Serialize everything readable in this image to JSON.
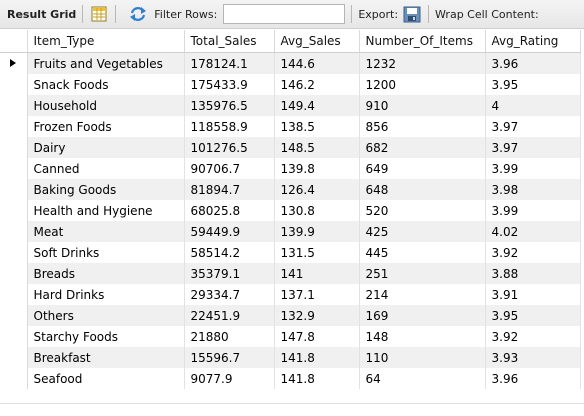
{
  "toolbar": {
    "result_grid_label": "Result Grid",
    "filter_rows_label": "Filter Rows:",
    "filter_rows_value": "",
    "export_label": "Export:",
    "wrap_cell_label": "Wrap Cell Content:"
  },
  "grid": {
    "columns": [
      "Item_Type",
      "Total_Sales",
      "Avg_Sales",
      "Number_Of_Items",
      "Avg_Rating"
    ],
    "rows": [
      [
        "Fruits and Vegetables",
        "178124.1",
        "144.6",
        "1232",
        "3.96"
      ],
      [
        "Snack Foods",
        "175433.9",
        "146.2",
        "1200",
        "3.95"
      ],
      [
        "Household",
        "135976.5",
        "149.4",
        "910",
        "4"
      ],
      [
        "Frozen Foods",
        "118558.9",
        "138.5",
        "856",
        "3.97"
      ],
      [
        "Dairy",
        "101276.5",
        "148.5",
        "682",
        "3.97"
      ],
      [
        "Canned",
        "90706.7",
        "139.8",
        "649",
        "3.99"
      ],
      [
        "Baking Goods",
        "81894.7",
        "126.4",
        "648",
        "3.98"
      ],
      [
        "Health and Hygiene",
        "68025.8",
        "130.8",
        "520",
        "3.99"
      ],
      [
        "Meat",
        "59449.9",
        "139.9",
        "425",
        "4.02"
      ],
      [
        "Soft Drinks",
        "58514.2",
        "131.5",
        "445",
        "3.92"
      ],
      [
        "Breads",
        "35379.1",
        "141",
        "251",
        "3.88"
      ],
      [
        "Hard Drinks",
        "29334.7",
        "137.1",
        "214",
        "3.91"
      ],
      [
        "Others",
        "22451.9",
        "132.9",
        "169",
        "3.95"
      ],
      [
        "Starchy Foods",
        "21880",
        "147.8",
        "148",
        "3.92"
      ],
      [
        "Breakfast",
        "15596.7",
        "141.8",
        "110",
        "3.93"
      ],
      [
        "Seafood",
        "9077.9",
        "141.8",
        "64",
        "3.96"
      ]
    ]
  },
  "icons": {
    "grid_view": "grid-view-icon",
    "refresh": "refresh-icon",
    "export": "export-icon",
    "current_row": "current-row-indicator-icon"
  }
}
